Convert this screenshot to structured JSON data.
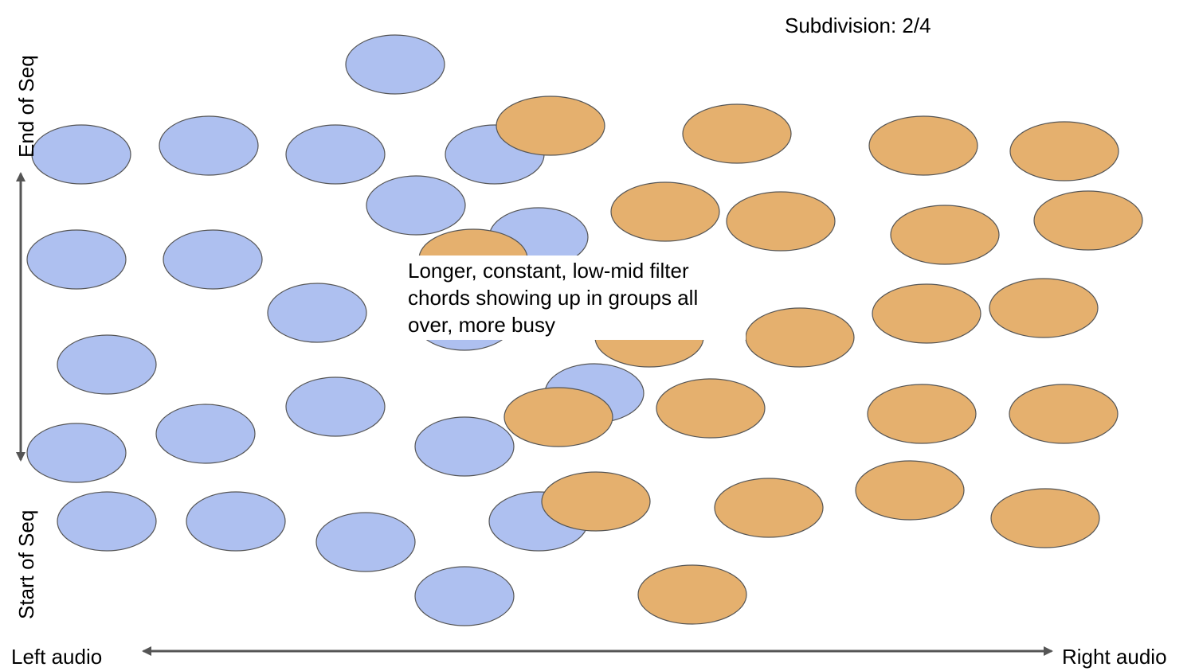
{
  "labels": {
    "subdivision": "Subdivision: 2/4",
    "y_top": "End of Seq",
    "y_bottom": "Start of Seq",
    "x_left": "Left audio",
    "x_right": "Right audio",
    "note": "Longer, constant, low-mid filter chords showing up in groups all over, more busy"
  },
  "colors": {
    "group_a": "#aec0f0",
    "group_b": "#e5b06e",
    "outline": "#555555",
    "axis": "#555555"
  }
}
